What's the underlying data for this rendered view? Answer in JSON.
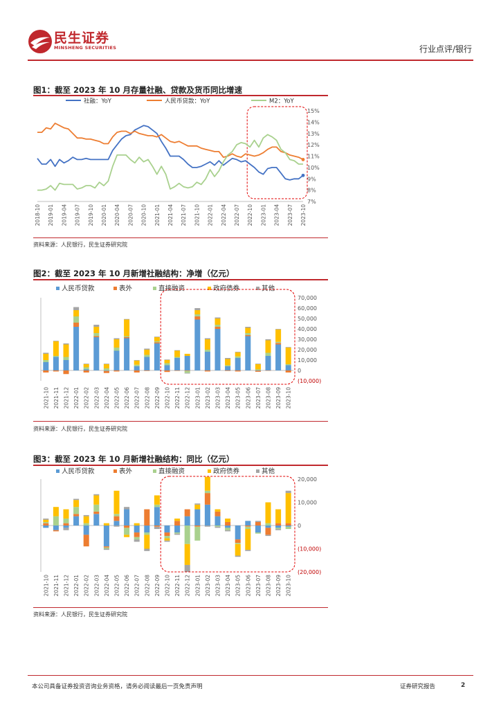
{
  "header": {
    "brand_cn": "民生证券",
    "brand_en": "MINSHENG SECURITIES",
    "category": "行业点评/银行"
  },
  "figures": [
    {
      "title": "图1：截至 2023 年 10 月存量社融、贷款及货币同比增速",
      "source": "资料来源：人民银行，民生证券研究院"
    },
    {
      "title": "图2：截至 2023 年 10 月新增社融结构：净增（亿元）",
      "source": "资料来源：人民银行，民生证券研究院"
    },
    {
      "title": "图3：截至 2023 年 10 月新增社融结构：同比（亿元）",
      "source": "资料来源：人民银行，民生证券研究院"
    }
  ],
  "footer": {
    "disclaimer": "本公司具备证券投资咨询业务资格，请务必阅读最后一页免责声明",
    "report_type": "证券研究报告",
    "page": "2"
  },
  "chart_data": [
    {
      "type": "line",
      "x": [
        "2018-10",
        "2018-11",
        "2018-12",
        "2019-01",
        "2019-02",
        "2019-03",
        "2019-04",
        "2019-05",
        "2019-06",
        "2019-07",
        "2019-08",
        "2019-09",
        "2019-10",
        "2019-11",
        "2019-12",
        "2020-01",
        "2020-02",
        "2020-03",
        "2020-04",
        "2020-05",
        "2020-06",
        "2020-07",
        "2020-08",
        "2020-09",
        "2020-10",
        "2020-11",
        "2020-12",
        "2021-01",
        "2021-02",
        "2021-03",
        "2021-04",
        "2021-05",
        "2021-06",
        "2021-07",
        "2021-08",
        "2021-09",
        "2021-10",
        "2021-11",
        "2021-12",
        "2022-01",
        "2022-02",
        "2022-03",
        "2022-04",
        "2022-05",
        "2022-06",
        "2022-07",
        "2022-08",
        "2022-09",
        "2022-10",
        "2022-11",
        "2022-12",
        "2023-01",
        "2023-02",
        "2023-03",
        "2023-04",
        "2023-05",
        "2023-06",
        "2023-07",
        "2023-08",
        "2023-09",
        "2023-10"
      ],
      "x_tick_labels": [
        "2018-10",
        "2019-01",
        "2019-04",
        "2019-07",
        "2019-10",
        "2020-01",
        "2020-04",
        "2020-07",
        "2020-10",
        "2021-01",
        "2021-04",
        "2021-07",
        "2021-10",
        "2022-01",
        "2022-04",
        "2022-07",
        "2022-10",
        "2023-01",
        "2023-04",
        "2023-07",
        "2023-10"
      ],
      "y_ticks": [
        "7%",
        "8%",
        "9%",
        "10%",
        "11%",
        "12%",
        "13%",
        "14%",
        "15%"
      ],
      "ylim": [
        7,
        15
      ],
      "highlight_range": [
        "2022-10",
        "2023-10"
      ],
      "series": [
        {
          "name": "社融：YoY",
          "color": "#4472c4",
          "end_marker": true,
          "values": [
            10.8,
            10.3,
            10.3,
            10.7,
            10.1,
            10.7,
            10.4,
            10.6,
            10.9,
            10.7,
            10.7,
            10.8,
            10.7,
            10.7,
            10.7,
            10.7,
            10.7,
            11.5,
            12.0,
            12.5,
            12.8,
            12.9,
            13.3,
            13.5,
            13.7,
            13.6,
            13.3,
            13.0,
            12.3,
            11.7,
            11.0,
            11.0,
            11.0,
            10.7,
            10.3,
            10.0,
            10.0,
            10.1,
            10.3,
            10.5,
            10.2,
            10.6,
            10.2,
            10.5,
            10.8,
            10.7,
            10.5,
            10.6,
            10.3,
            10.0,
            9.6,
            9.4,
            9.9,
            10.0,
            10.0,
            9.5,
            9.0,
            8.9,
            9.0,
            9.0,
            9.3
          ]
        },
        {
          "name": "人民币贷款：YoY",
          "color": "#ed7d31",
          "end_marker": true,
          "values": [
            13.1,
            13.1,
            13.5,
            13.4,
            13.9,
            13.7,
            13.5,
            13.4,
            13.0,
            12.6,
            12.6,
            12.5,
            12.5,
            12.4,
            12.3,
            12.1,
            12.1,
            12.7,
            13.1,
            13.2,
            13.2,
            13.0,
            13.2,
            13.0,
            12.9,
            12.8,
            12.8,
            12.7,
            12.9,
            12.6,
            12.3,
            12.2,
            12.3,
            12.1,
            11.9,
            11.9,
            11.9,
            11.7,
            11.6,
            11.5,
            11.4,
            11.4,
            10.9,
            11.0,
            11.2,
            11.0,
            10.9,
            11.2,
            11.1,
            11.0,
            11.1,
            11.3,
            11.6,
            11.8,
            11.8,
            11.4,
            11.3,
            11.1,
            11.0,
            10.9,
            10.7
          ]
        },
        {
          "name": "M2：YoY",
          "color": "#a9d18e",
          "end_marker": false,
          "values": [
            8.0,
            8.0,
            8.1,
            8.4,
            8.0,
            8.6,
            8.5,
            8.5,
            8.5,
            8.1,
            8.2,
            8.4,
            8.4,
            8.2,
            8.7,
            8.4,
            8.8,
            10.1,
            11.1,
            11.1,
            11.1,
            10.7,
            10.4,
            10.9,
            10.5,
            10.7,
            10.1,
            9.4,
            10.1,
            9.4,
            8.1,
            8.3,
            8.6,
            8.3,
            8.2,
            8.3,
            8.7,
            8.5,
            9.0,
            9.8,
            9.2,
            9.7,
            10.5,
            11.1,
            11.4,
            12.0,
            12.2,
            12.1,
            11.8,
            12.4,
            11.8,
            12.6,
            12.9,
            12.7,
            12.4,
            11.6,
            11.3,
            10.7,
            10.6,
            10.3,
            10.3
          ]
        }
      ]
    },
    {
      "type": "bar",
      "stacked": true,
      "categories": [
        "2021-10",
        "2021-11",
        "2021-12",
        "2022-01",
        "2022-02",
        "2022-03",
        "2022-04",
        "2022-05",
        "2022-06",
        "2022-07",
        "2022-08",
        "2022-09",
        "2022-10",
        "2022-11",
        "2022-12",
        "2023-01",
        "2023-02",
        "2023-03",
        "2023-04",
        "2023-05",
        "2023-06",
        "2023-07",
        "2023-08",
        "2023-09",
        "2023-10"
      ],
      "y_ticks": [
        "(10,000)",
        "0",
        "10,000",
        "20,000",
        "30,000",
        "40,000",
        "50,000",
        "60,000",
        "70,000"
      ],
      "ylim": [
        -10000,
        70000
      ],
      "highlight_range": [
        "2022-10",
        "2023-10"
      ],
      "series": [
        {
          "name": "人民币贷款",
          "color": "#5b9bd5",
          "values": [
            8000,
            13000,
            10000,
            42000,
            1000,
            32000,
            -500,
            19000,
            31000,
            4000,
            13000,
            26000,
            5000,
            12000,
            14000,
            49000,
            18000,
            40000,
            4000,
            12000,
            33000,
            -300,
            14000,
            25000,
            5000
          ]
        },
        {
          "name": "表外",
          "color": "#ed7d31",
          "values": [
            -2000,
            -1000,
            -3500,
            4000,
            -2000,
            1000,
            -2000,
            -1000,
            1000,
            -2000,
            -500,
            1000,
            -1500,
            -400,
            -500,
            3000,
            -1000,
            2000,
            -500,
            -1000,
            1000,
            -1000,
            -300,
            1500,
            -2000
          ]
        },
        {
          "name": "直接融资",
          "color": "#a9d18e",
          "values": [
            2000,
            1000,
            3000,
            6000,
            2000,
            3000,
            2000,
            3000,
            1000,
            1500,
            2000,
            1000,
            2000,
            1000,
            -2000,
            2000,
            2000,
            2000,
            1000,
            1500,
            2000,
            1000,
            3000,
            1000,
            1000
          ]
        },
        {
          "name": "政府债券",
          "color": "#ffc000",
          "values": [
            6000,
            14000,
            12000,
            6000,
            3000,
            6000,
            4000,
            8000,
            16000,
            4000,
            5000,
            4000,
            3000,
            6000,
            2000,
            4000,
            10000,
            6000,
            6000,
            4000,
            5000,
            5000,
            12000,
            12000,
            16000
          ]
        },
        {
          "name": "其他",
          "color": "#a5a5a5",
          "values": [
            1000,
            500,
            1000,
            3000,
            500,
            2000,
            500,
            1000,
            500,
            500,
            1000,
            500,
            500,
            500,
            -500,
            2000,
            1000,
            1000,
            1000,
            500,
            1000,
            500,
            1000,
            500,
            500
          ]
        }
      ]
    },
    {
      "type": "bar",
      "stacked": true,
      "categories": [
        "2021-10",
        "2021-11",
        "2021-12",
        "2022-01",
        "2022-02",
        "2022-03",
        "2022-04",
        "2022-05",
        "2022-06",
        "2022-07",
        "2022-08",
        "2022-09",
        "2022-10",
        "2022-11",
        "2022-12",
        "2023-01",
        "2023-02",
        "2023-03",
        "2023-04",
        "2023-05",
        "2023-06",
        "2023-07",
        "2023-08",
        "2023-09",
        "2023-10"
      ],
      "y_ticks": [
        "(20,000)",
        "(10,000)",
        "0",
        "10,000",
        "20,000"
      ],
      "ylim": [
        -20000,
        20000
      ],
      "highlight_range": [
        "2022-10",
        "2023-10"
      ],
      "series": [
        {
          "name": "人民币贷款",
          "color": "#5b9bd5",
          "values": [
            -1000,
            -2000,
            -1000,
            4000,
            -4000,
            5000,
            -9000,
            2000,
            7000,
            -3000,
            -3000,
            8000,
            -3000,
            -3000,
            4000,
            7000,
            9000,
            4000,
            -1000,
            -6000,
            2000,
            -3000,
            -1000,
            -1000,
            -500
          ]
        },
        {
          "name": "表外",
          "color": "#ed7d31",
          "values": [
            1000,
            -500,
            1000,
            1000,
            -5000,
            1000,
            -500,
            2000,
            -1000,
            -2000,
            7000,
            -500,
            -1500,
            2000,
            3000,
            -500,
            5000,
            2000,
            1500,
            -1500,
            -500,
            1500,
            -3000,
            1000,
            1000
          ]
        },
        {
          "name": "直接融资",
          "color": "#a9d18e",
          "values": [
            500,
            4000,
            2000,
            3000,
            1000,
            3000,
            -500,
            1000,
            -3000,
            -1000,
            -1000,
            1000,
            -1000,
            -500,
            -8000,
            -6000,
            1000,
            -500,
            -1000,
            -500,
            -1000,
            -500,
            1000,
            -500,
            -1000
          ]
        },
        {
          "name": "政府债券",
          "color": "#ffc000",
          "values": [
            1000,
            4000,
            4000,
            3000,
            3000,
            4000,
            1000,
            10000,
            -1000,
            1000,
            -6000,
            4000,
            -1000,
            1000,
            -9000,
            2000,
            6000,
            1000,
            1500,
            -5000,
            -9000,
            0,
            9000,
            6000,
            13000
          ]
        },
        {
          "name": "其他",
          "color": "#a5a5a5",
          "values": [
            500,
            0,
            -1000,
            500,
            500,
            500,
            -500,
            -500,
            1000,
            -1000,
            -1000,
            -1000,
            -500,
            -500,
            -3000,
            500,
            -500,
            -500,
            -500,
            -500,
            -500,
            500,
            -500,
            -500,
            1000
          ]
        }
      ]
    }
  ]
}
